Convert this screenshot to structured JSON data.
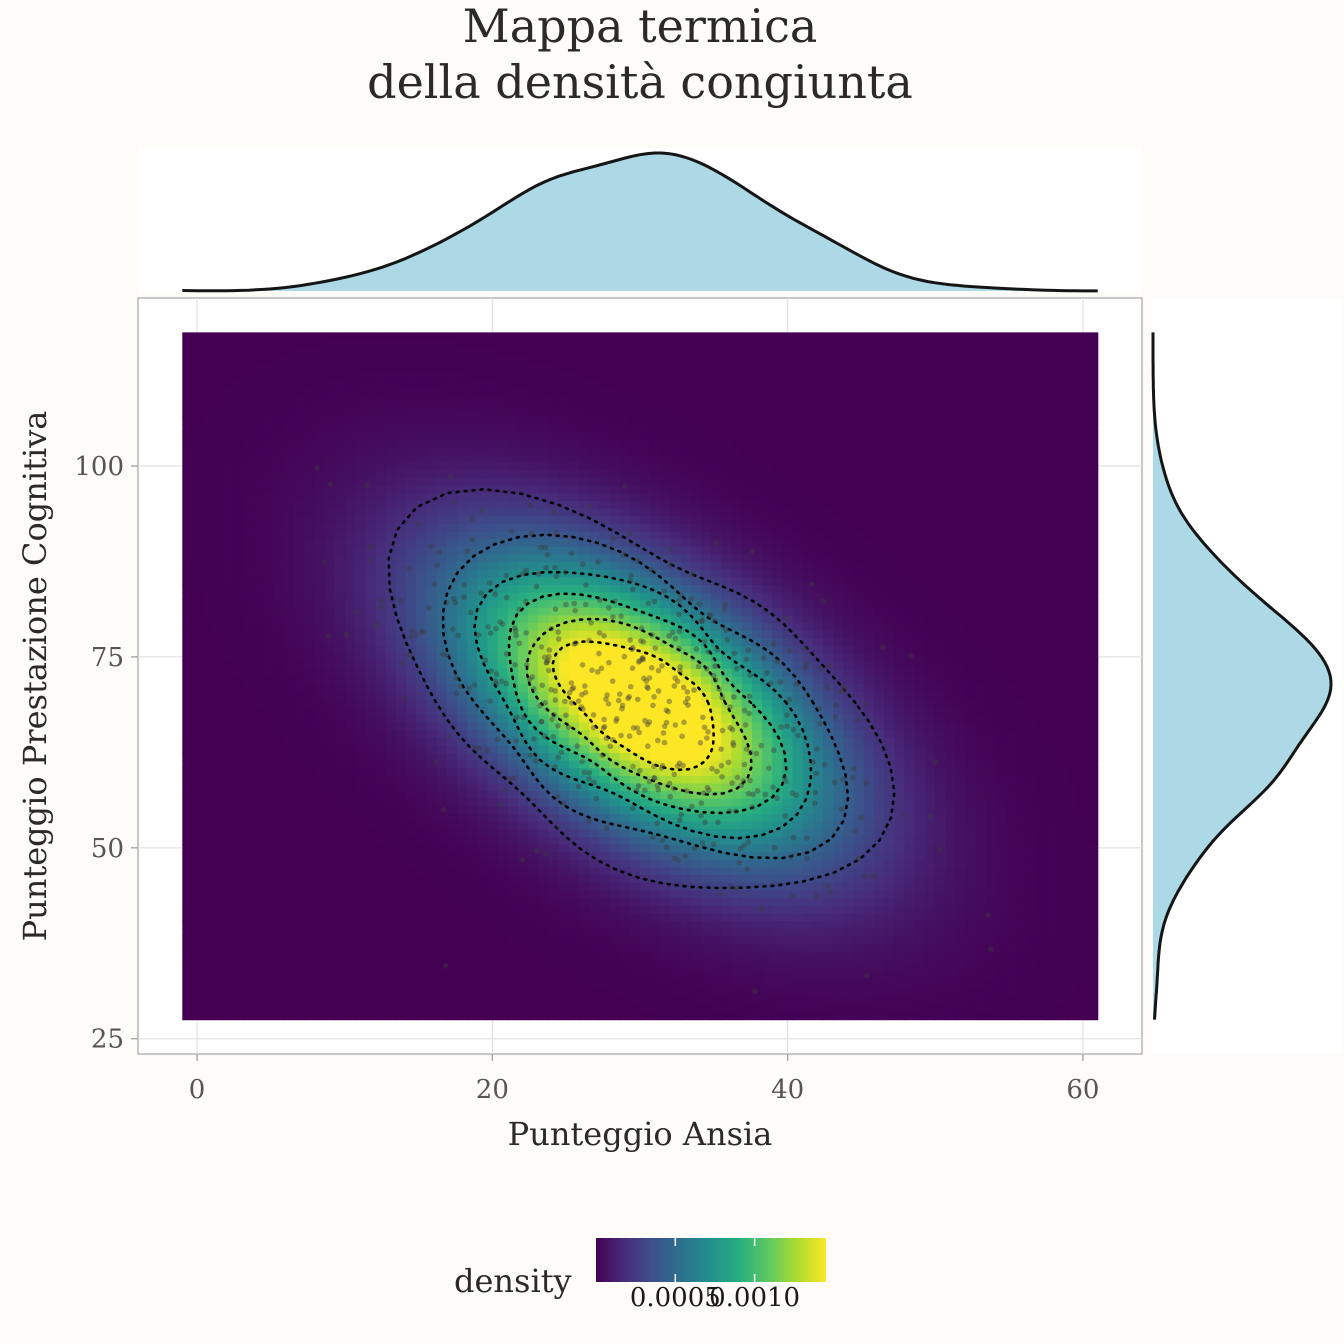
{
  "chart_data": {
    "type": "heatmap",
    "title_lines": [
      "Mappa termica",
      "della densità congiunta"
    ],
    "xlabel": "Punteggio Ansia",
    "ylabel": "Punteggio Prestazione Cognitiva",
    "xlim": [
      -4,
      64
    ],
    "ylim": [
      23,
      122
    ],
    "x_ticks": [
      0,
      20,
      40,
      60
    ],
    "x_tick_labels": [
      "0",
      "20",
      "40",
      "60"
    ],
    "y_ticks": [
      25,
      50,
      75,
      100
    ],
    "y_tick_labels": [
      "25",
      "50",
      "75",
      "100"
    ],
    "density_grid_extent": {
      "x": [
        -1,
        61
      ],
      "y": [
        27.5,
        117.5
      ]
    },
    "density_peak": {
      "x": 30,
      "y": 69
    },
    "gaussian_model": {
      "mean": [
        30,
        69
      ],
      "sd": [
        8.5,
        13
      ],
      "correlation": -0.55
    },
    "scatter_points": 500,
    "contour_levels": 6,
    "grid": true,
    "marginal_x": {
      "type": "density",
      "fill": "#add8e6",
      "mode_x": 30
    },
    "marginal_y": {
      "type": "density",
      "fill": "#add8e6",
      "mode_y": 70
    },
    "legend": {
      "title": "density",
      "placement": "bottom",
      "colormap": "viridis",
      "tick_labels": [
        "0.0005",
        "0.0010"
      ],
      "tick_values": [
        0.0005,
        0.001
      ],
      "range": [
        0,
        0.00145
      ]
    }
  }
}
